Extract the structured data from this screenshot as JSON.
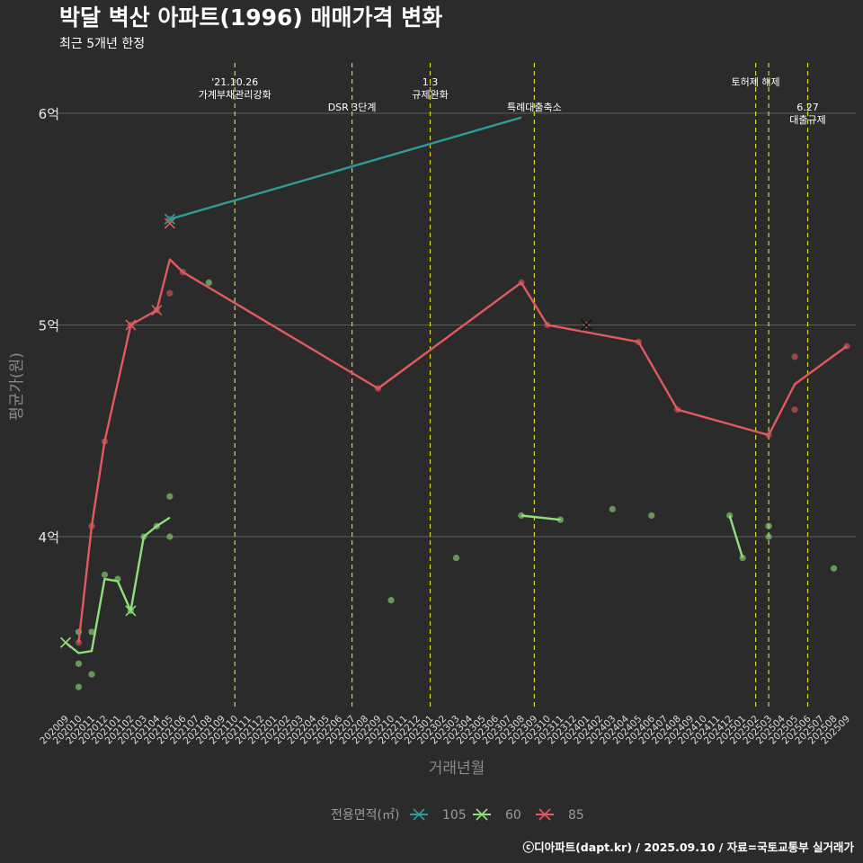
{
  "chart_data": {
    "type": "line",
    "title": "박달 벽산 아파트(1996) 매매가격 변화",
    "subtitle": "최근 5개년 한정",
    "xlabel": "거래년월",
    "ylabel": "평균가(원)",
    "caption": "ⓒ디아파트(dapt.kr) / 2025.09.10 / 자료=국토교통부 실거래가",
    "x_categories": [
      "202009",
      "202010",
      "202011",
      "202012",
      "202101",
      "202102",
      "202103",
      "202104",
      "202105",
      "202106",
      "202107",
      "202108",
      "202109",
      "202110",
      "202111",
      "202112",
      "202201",
      "202202",
      "202203",
      "202204",
      "202205",
      "202206",
      "202207",
      "202208",
      "202209",
      "202210",
      "202211",
      "202212",
      "202301",
      "202302",
      "202303",
      "202304",
      "202305",
      "202306",
      "202307",
      "202308",
      "202309",
      "202310",
      "202311",
      "202312",
      "202401",
      "202402",
      "202403",
      "202404",
      "202405",
      "202406",
      "202407",
      "202408",
      "202409",
      "202410",
      "202411",
      "202412",
      "202501",
      "202502",
      "202503",
      "202504",
      "202505",
      "202506",
      "202507",
      "202508",
      "202509"
    ],
    "y_ticks": [
      {
        "value": 4.0,
        "label": "4억"
      },
      {
        "value": 5.0,
        "label": "5억"
      },
      {
        "value": 6.0,
        "label": "6억"
      }
    ],
    "ylim": [
      3.2,
      6.25
    ],
    "grid": true,
    "legend": {
      "title": "전용면적(㎡)",
      "position": "bottom",
      "entries": [
        {
          "name": "105",
          "color": "#2f9a9a"
        },
        {
          "name": "60",
          "color": "#8fe07a"
        },
        {
          "name": "85",
          "color": "#e05a5e"
        }
      ]
    },
    "events": [
      {
        "x": "202110",
        "label": "'21.10.26\n가계부채관리강화",
        "level": 0
      },
      {
        "x": "202207",
        "label": "DSR 3단계",
        "level": 1
      },
      {
        "x": "202301",
        "label": "1.3\n규제완화",
        "level": 0
      },
      {
        "x": "202309",
        "label": "특례대출축소",
        "level": 1
      },
      {
        "x": "202502",
        "label": "토허제 해제",
        "level": 0
      },
      {
        "x": "202503",
        "label": "",
        "level": 0
      },
      {
        "x": "202506",
        "label": "6.27\n대출규제",
        "level": 1
      }
    ],
    "series": [
      {
        "name": "105",
        "color": "#2f9a9a",
        "line": [
          [
            "202105",
            5.5
          ],
          [
            "202308",
            5.98
          ]
        ],
        "points": [
          [
            "202105",
            5.5
          ]
        ],
        "crosses": [
          [
            "202105",
            5.5
          ]
        ]
      },
      {
        "name": "60",
        "color": "#8fe07a",
        "line": [
          [
            "202009",
            3.5
          ],
          [
            "202010",
            3.45
          ],
          [
            "202011",
            3.46
          ],
          [
            "202012",
            3.8
          ],
          [
            "202101",
            3.79
          ],
          [
            "202102",
            3.65
          ],
          [
            "202103",
            4.0
          ],
          [
            "202104",
            4.05
          ],
          [
            "202105",
            4.09
          ]
        ],
        "line_segments": [
          [
            [
              "202308",
              4.1
            ],
            [
              "202311",
              4.08
            ]
          ],
          [
            [
              "202412",
              4.1
            ],
            [
              "202501",
              3.9
            ]
          ]
        ],
        "points": [
          [
            "202010",
            3.55
          ],
          [
            "202010",
            3.4
          ],
          [
            "202010",
            3.29
          ],
          [
            "202011",
            3.55
          ],
          [
            "202011",
            3.35
          ],
          [
            "202012",
            3.82
          ],
          [
            "202101",
            3.8
          ],
          [
            "202102",
            3.65
          ],
          [
            "202103",
            4.0
          ],
          [
            "202104",
            4.05
          ],
          [
            "202105",
            4.19
          ],
          [
            "202105",
            4.0
          ],
          [
            "202108",
            5.2
          ],
          [
            "202210",
            3.7
          ],
          [
            "202303",
            3.9
          ],
          [
            "202308",
            4.1
          ],
          [
            "202311",
            4.08
          ],
          [
            "202403",
            4.13
          ],
          [
            "202406",
            4.1
          ],
          [
            "202412",
            4.1
          ],
          [
            "202501",
            3.9
          ],
          [
            "202503",
            4.05
          ],
          [
            "202503",
            4.0
          ],
          [
            "202508",
            3.85
          ]
        ],
        "crosses": [
          [
            "202009",
            3.5
          ],
          [
            "202102",
            3.65
          ]
        ]
      },
      {
        "name": "85",
        "color": "#e05a5e",
        "line": [
          [
            "202010",
            3.5
          ],
          [
            "202011",
            4.05
          ],
          [
            "202012",
            4.45
          ],
          [
            "202102",
            5.0
          ],
          [
            "202104",
            5.07
          ],
          [
            "202105",
            5.31
          ],
          [
            "202106",
            5.25
          ],
          [
            "202209",
            4.7
          ],
          [
            "202308",
            5.2
          ],
          [
            "202310",
            5.0
          ],
          [
            "202405",
            4.92
          ],
          [
            "202408",
            4.6
          ],
          [
            "202503",
            4.48
          ],
          [
            "202505",
            4.72
          ],
          [
            "202509",
            4.9
          ]
        ],
        "points": [
          [
            "202010",
            3.5
          ],
          [
            "202011",
            4.05
          ],
          [
            "202012",
            4.45
          ],
          [
            "202102",
            5.0
          ],
          [
            "202104",
            5.07
          ],
          [
            "202105",
            5.15
          ],
          [
            "202106",
            5.25
          ],
          [
            "202209",
            4.7
          ],
          [
            "202308",
            5.2
          ],
          [
            "202310",
            5.0
          ],
          [
            "202401",
            5.0
          ],
          [
            "202405",
            4.92
          ],
          [
            "202408",
            4.6
          ],
          [
            "202503",
            4.48
          ],
          [
            "202505",
            4.85
          ],
          [
            "202505",
            4.6
          ],
          [
            "202509",
            4.9
          ]
        ],
        "crosses": [
          [
            "202102",
            5.0
          ],
          [
            "202104",
            5.07
          ],
          [
            "202105",
            5.48
          ]
        ],
        "highlight_cross": [
          [
            "202401",
            5.0
          ]
        ]
      }
    ]
  }
}
